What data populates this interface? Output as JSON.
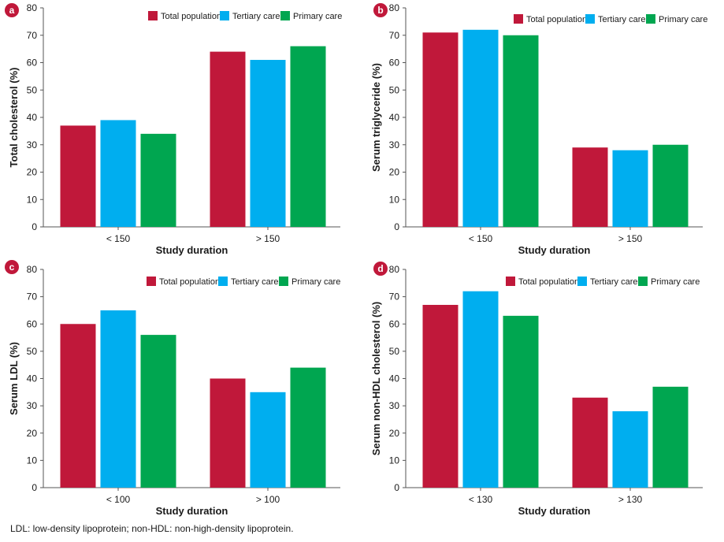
{
  "legend": [
    "Total population",
    "Tertiary care",
    "Primary care"
  ],
  "colors": {
    "Total population": "#c0183a",
    "Tertiary care": "#00aeef",
    "Primary care": "#00a650",
    "panel_badge": "#c0183a",
    "axis": "#555555"
  },
  "footnote": "LDL: low-density lipoprotein; non-HDL: non-high-density lipoprotein.",
  "chart_data": [
    {
      "panel": "a",
      "type": "bar",
      "xlabel": "Study duration",
      "ylabel": "Total cholesterol (%)",
      "ylim": [
        0,
        80
      ],
      "yticks": [
        0,
        10,
        20,
        30,
        40,
        50,
        60,
        70,
        80
      ],
      "categories": [
        "< 150",
        "> 150"
      ],
      "series": [
        {
          "name": "Total population",
          "values": [
            37,
            64
          ]
        },
        {
          "name": "Tertiary care",
          "values": [
            39,
            61
          ]
        },
        {
          "name": "Primary care",
          "values": [
            34,
            66
          ]
        }
      ],
      "legend_position": "top-right",
      "grid": false
    },
    {
      "panel": "b",
      "type": "bar",
      "xlabel": "Study duration",
      "ylabel": "Serum triglyceride (%)",
      "ylim": [
        0,
        80
      ],
      "yticks": [
        0,
        10,
        20,
        30,
        40,
        50,
        60,
        70,
        80
      ],
      "categories": [
        "< 150",
        "> 150"
      ],
      "series": [
        {
          "name": "Total population",
          "values": [
            71,
            29
          ]
        },
        {
          "name": "Tertiary care",
          "values": [
            72,
            28
          ]
        },
        {
          "name": "Primary care",
          "values": [
            70,
            30
          ]
        }
      ],
      "legend_position": "top-right",
      "grid": false
    },
    {
      "panel": "c",
      "type": "bar",
      "xlabel": "Study duration",
      "ylabel": "Serum LDL (%)",
      "ylim": [
        0,
        80
      ],
      "yticks": [
        0,
        10,
        20,
        30,
        40,
        50,
        60,
        70,
        80
      ],
      "categories": [
        "< 100",
        "> 100"
      ],
      "series": [
        {
          "name": "Total population",
          "values": [
            60,
            40
          ]
        },
        {
          "name": "Tertiary care",
          "values": [
            65,
            35
          ]
        },
        {
          "name": "Primary care",
          "values": [
            56,
            44
          ]
        }
      ],
      "legend_position": "top-right",
      "grid": false
    },
    {
      "panel": "d",
      "type": "bar",
      "xlabel": "Study duration",
      "ylabel": "Serum non-HDL cholesterol (%)",
      "ylim": [
        0,
        80
      ],
      "yticks": [
        0,
        10,
        20,
        30,
        40,
        50,
        60,
        70,
        80
      ],
      "categories": [
        "< 130",
        "> 130"
      ],
      "series": [
        {
          "name": "Total population",
          "values": [
            67,
            33
          ]
        },
        {
          "name": "Tertiary care",
          "values": [
            72,
            28
          ]
        },
        {
          "name": "Primary care",
          "values": [
            63,
            37
          ]
        }
      ],
      "legend_position": "top-right",
      "grid": false
    }
  ]
}
